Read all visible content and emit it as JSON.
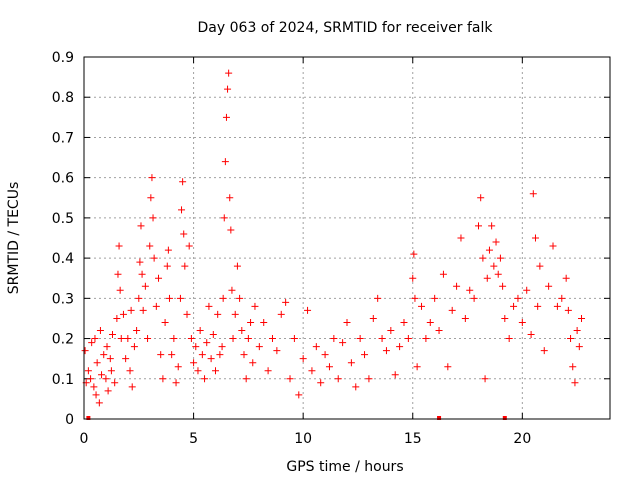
{
  "chart_data": {
    "type": "scatter",
    "title": "Day 063 of 2024, SRMTID for receiver falk",
    "xlabel": "GPS time / hours",
    "ylabel": "SRMTID / TECUs",
    "xlim": [
      0,
      24
    ],
    "ylim": [
      0,
      0.9
    ],
    "xticks": [
      0,
      5,
      10,
      15,
      20
    ],
    "yticks": [
      0,
      0.1,
      0.2,
      0.3,
      0.4,
      0.5,
      0.6,
      0.7,
      0.8,
      0.9
    ],
    "xtick_labels": [
      "0",
      "5",
      "10",
      "15",
      "20"
    ],
    "ytick_labels": [
      "0",
      "0.1",
      "0.2",
      "0.3",
      "0.4",
      "0.5",
      "0.6",
      "0.7",
      "0.8",
      "0.9"
    ],
    "grid": true,
    "marker": "+",
    "color": "#ff0000",
    "series": [
      {
        "name": "SRMTID",
        "points": [
          [
            0.05,
            0.17
          ],
          [
            0.1,
            0.09
          ],
          [
            0.2,
            0.12
          ],
          [
            0.3,
            0.1
          ],
          [
            0.35,
            0.19
          ],
          [
            0.45,
            0.08
          ],
          [
            0.5,
            0.2
          ],
          [
            0.55,
            0.06
          ],
          [
            0.6,
            0.14
          ],
          [
            0.7,
            0.04
          ],
          [
            0.75,
            0.22
          ],
          [
            0.8,
            0.11
          ],
          [
            0.9,
            0.16
          ],
          [
            1.0,
            0.1
          ],
          [
            1.05,
            0.18
          ],
          [
            1.1,
            0.07
          ],
          [
            1.2,
            0.15
          ],
          [
            1.25,
            0.12
          ],
          [
            1.3,
            0.21
          ],
          [
            1.4,
            0.09
          ],
          [
            1.5,
            0.25
          ],
          [
            1.55,
            0.36
          ],
          [
            1.6,
            0.43
          ],
          [
            1.65,
            0.32
          ],
          [
            1.7,
            0.2
          ],
          [
            1.8,
            0.26
          ],
          [
            1.9,
            0.15
          ],
          [
            2.0,
            0.2
          ],
          [
            2.1,
            0.12
          ],
          [
            2.15,
            0.27
          ],
          [
            2.2,
            0.08
          ],
          [
            2.3,
            0.18
          ],
          [
            2.4,
            0.22
          ],
          [
            2.5,
            0.3
          ],
          [
            2.55,
            0.39
          ],
          [
            2.6,
            0.48
          ],
          [
            2.65,
            0.36
          ],
          [
            2.7,
            0.27
          ],
          [
            2.8,
            0.33
          ],
          [
            2.9,
            0.2
          ],
          [
            3.0,
            0.43
          ],
          [
            3.05,
            0.55
          ],
          [
            3.1,
            0.6
          ],
          [
            3.15,
            0.5
          ],
          [
            3.2,
            0.4
          ],
          [
            3.3,
            0.28
          ],
          [
            3.4,
            0.35
          ],
          [
            3.5,
            0.16
          ],
          [
            3.6,
            0.1
          ],
          [
            3.7,
            0.24
          ],
          [
            3.8,
            0.38
          ],
          [
            3.85,
            0.42
          ],
          [
            3.9,
            0.3
          ],
          [
            4.0,
            0.16
          ],
          [
            4.1,
            0.2
          ],
          [
            4.2,
            0.09
          ],
          [
            4.3,
            0.13
          ],
          [
            4.4,
            0.3
          ],
          [
            4.45,
            0.52
          ],
          [
            4.5,
            0.59
          ],
          [
            4.55,
            0.46
          ],
          [
            4.6,
            0.38
          ],
          [
            4.7,
            0.26
          ],
          [
            4.8,
            0.43
          ],
          [
            4.9,
            0.2
          ],
          [
            5.0,
            0.14
          ],
          [
            5.1,
            0.18
          ],
          [
            5.2,
            0.12
          ],
          [
            5.3,
            0.22
          ],
          [
            5.4,
            0.16
          ],
          [
            5.5,
            0.1
          ],
          [
            5.6,
            0.19
          ],
          [
            5.7,
            0.28
          ],
          [
            5.8,
            0.15
          ],
          [
            5.9,
            0.21
          ],
          [
            6.0,
            0.12
          ],
          [
            6.1,
            0.26
          ],
          [
            6.2,
            0.16
          ],
          [
            6.3,
            0.18
          ],
          [
            6.35,
            0.3
          ],
          [
            6.4,
            0.5
          ],
          [
            6.45,
            0.64
          ],
          [
            6.5,
            0.75
          ],
          [
            6.55,
            0.82
          ],
          [
            6.6,
            0.86
          ],
          [
            6.65,
            0.55
          ],
          [
            6.7,
            0.47
          ],
          [
            6.75,
            0.32
          ],
          [
            6.8,
            0.2
          ],
          [
            6.9,
            0.26
          ],
          [
            7.0,
            0.38
          ],
          [
            7.1,
            0.3
          ],
          [
            7.2,
            0.22
          ],
          [
            7.3,
            0.16
          ],
          [
            7.4,
            0.1
          ],
          [
            7.5,
            0.2
          ],
          [
            7.6,
            0.24
          ],
          [
            7.7,
            0.14
          ],
          [
            7.8,
            0.28
          ],
          [
            8.0,
            0.18
          ],
          [
            8.2,
            0.24
          ],
          [
            8.4,
            0.12
          ],
          [
            8.6,
            0.2
          ],
          [
            8.8,
            0.17
          ],
          [
            9.0,
            0.26
          ],
          [
            9.2,
            0.29
          ],
          [
            9.4,
            0.1
          ],
          [
            9.6,
            0.2
          ],
          [
            9.8,
            0.06
          ],
          [
            10.0,
            0.15
          ],
          [
            10.2,
            0.27
          ],
          [
            10.4,
            0.12
          ],
          [
            10.6,
            0.18
          ],
          [
            10.8,
            0.09
          ],
          [
            11.0,
            0.16
          ],
          [
            11.2,
            0.13
          ],
          [
            11.4,
            0.2
          ],
          [
            11.6,
            0.1
          ],
          [
            11.8,
            0.19
          ],
          [
            12.0,
            0.24
          ],
          [
            12.2,
            0.14
          ],
          [
            12.4,
            0.08
          ],
          [
            12.6,
            0.2
          ],
          [
            12.8,
            0.16
          ],
          [
            13.0,
            0.1
          ],
          [
            13.2,
            0.25
          ],
          [
            13.4,
            0.3
          ],
          [
            13.6,
            0.2
          ],
          [
            13.8,
            0.17
          ],
          [
            14.0,
            0.22
          ],
          [
            14.2,
            0.11
          ],
          [
            14.4,
            0.18
          ],
          [
            14.6,
            0.24
          ],
          [
            14.8,
            0.2
          ],
          [
            15.0,
            0.35
          ],
          [
            15.05,
            0.41
          ],
          [
            15.1,
            0.3
          ],
          [
            15.2,
            0.13
          ],
          [
            15.4,
            0.28
          ],
          [
            15.6,
            0.2
          ],
          [
            15.8,
            0.24
          ],
          [
            16.0,
            0.3
          ],
          [
            16.2,
            0.22
          ],
          [
            16.4,
            0.36
          ],
          [
            16.6,
            0.13
          ],
          [
            16.8,
            0.27
          ],
          [
            17.0,
            0.33
          ],
          [
            17.2,
            0.45
          ],
          [
            17.4,
            0.25
          ],
          [
            17.6,
            0.32
          ],
          [
            17.8,
            0.3
          ],
          [
            18.0,
            0.48
          ],
          [
            18.1,
            0.55
          ],
          [
            18.2,
            0.4
          ],
          [
            18.3,
            0.1
          ],
          [
            18.4,
            0.35
          ],
          [
            18.5,
            0.42
          ],
          [
            18.6,
            0.48
          ],
          [
            18.7,
            0.38
          ],
          [
            18.8,
            0.44
          ],
          [
            18.9,
            0.36
          ],
          [
            19.0,
            0.4
          ],
          [
            19.1,
            0.33
          ],
          [
            19.2,
            0.25
          ],
          [
            19.4,
            0.2
          ],
          [
            19.6,
            0.28
          ],
          [
            19.8,
            0.3
          ],
          [
            20.0,
            0.24
          ],
          [
            20.2,
            0.32
          ],
          [
            20.4,
            0.21
          ],
          [
            20.5,
            0.56
          ],
          [
            20.6,
            0.45
          ],
          [
            20.7,
            0.28
          ],
          [
            20.8,
            0.38
          ],
          [
            21.0,
            0.17
          ],
          [
            21.2,
            0.33
          ],
          [
            21.4,
            0.43
          ],
          [
            21.6,
            0.28
          ],
          [
            21.8,
            0.3
          ],
          [
            22.0,
            0.35
          ],
          [
            22.1,
            0.27
          ],
          [
            22.2,
            0.2
          ],
          [
            22.3,
            0.13
          ],
          [
            22.4,
            0.09
          ],
          [
            22.5,
            0.22
          ],
          [
            22.6,
            0.18
          ],
          [
            22.7,
            0.25
          ]
        ]
      }
    ],
    "baseline_markers": [
      0.2,
      16.2,
      19.2
    ]
  }
}
